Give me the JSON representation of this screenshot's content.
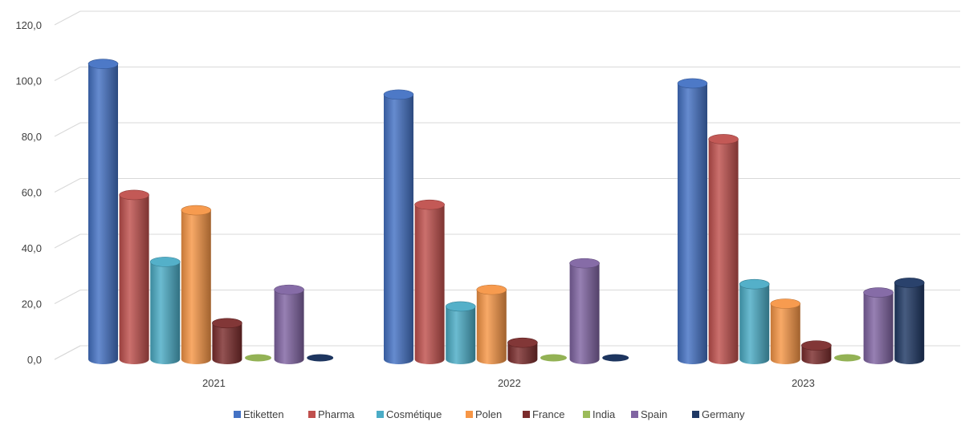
{
  "chart_data": {
    "type": "bar",
    "categories": [
      "2021",
      "2022",
      "2023"
    ],
    "ylim": [
      0,
      120
    ],
    "yticks": [
      "0,0",
      "20,0",
      "40,0",
      "60,0",
      "80,0",
      "100,0",
      "120,0"
    ],
    "grid": true,
    "legend_position": "bottom",
    "series": [
      {
        "name": "Etiketten",
        "color": "#4472C4",
        "values": [
          106,
          95,
          99
        ]
      },
      {
        "name": "Pharma",
        "color": "#C0504D",
        "values": [
          59,
          55.5,
          79
        ]
      },
      {
        "name": "Cosmétique",
        "color": "#4BACC6",
        "values": [
          35,
          19,
          27
        ]
      },
      {
        "name": "Polen",
        "color": "#F79646",
        "values": [
          53.5,
          25,
          20
        ]
      },
      {
        "name": "France",
        "color": "#7B2C2C",
        "values": [
          13,
          6,
          5
        ]
      },
      {
        "name": "India",
        "color": "#9BBB59",
        "values": [
          0,
          0,
          0
        ]
      },
      {
        "name": "Spain",
        "color": "#8064A2",
        "values": [
          25,
          34.5,
          24
        ]
      },
      {
        "name": "Germany",
        "color": "#1F3864",
        "values": [
          0,
          0,
          27.5
        ]
      }
    ]
  }
}
